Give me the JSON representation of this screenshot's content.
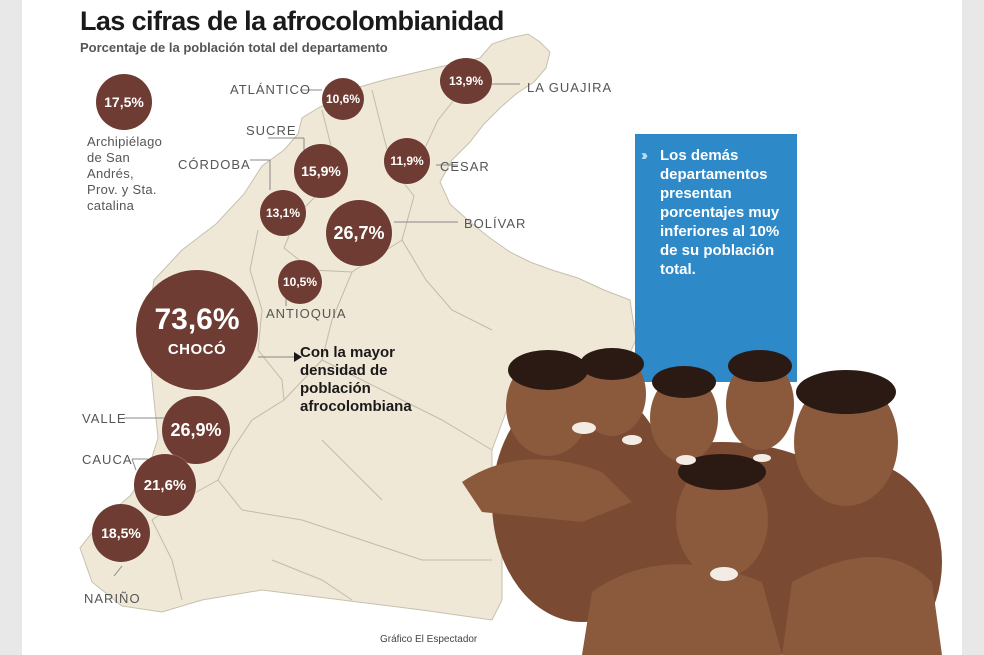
{
  "header": {
    "title": "Las cifras de la afrocolombianidad",
    "subtitle": "Porcentaje de la población total del departamento"
  },
  "chart_data": {
    "type": "bubble-map",
    "title": "Las cifras de la afrocolombianidad",
    "subtitle": "Porcentaje de la población total del departamento",
    "unit": "%",
    "points": [
      {
        "department": "Archipiélago de San Andrés, Prov. y Sta. catalina",
        "label": "17,5%",
        "value": 17.5
      },
      {
        "department": "ATLÁNTICO",
        "label": "10,6%",
        "value": 10.6
      },
      {
        "department": "LA GUAJIRA",
        "label": "13,9%",
        "value": 13.9
      },
      {
        "department": "SUCRE",
        "label": "15,9%",
        "value": 15.9
      },
      {
        "department": "CÓRDOBA",
        "label": "13,1%",
        "value": 13.1
      },
      {
        "department": "CESAR",
        "label": "11,9%",
        "value": 11.9
      },
      {
        "department": "BOLÍVAR",
        "label": "26,7%",
        "value": 26.7
      },
      {
        "department": "ANTIOQUIA",
        "label": "10,5%",
        "value": 10.5
      },
      {
        "department": "CHOCÓ",
        "label": "73,6%",
        "value": 73.6
      },
      {
        "department": "VALLE",
        "label": "26,9%",
        "value": 26.9
      },
      {
        "department": "CAUCA",
        "label": "21,6%",
        "value": 21.6
      },
      {
        "department": "NARIÑO",
        "label": "18,5%",
        "value": 18.5
      }
    ]
  },
  "labels": {
    "san_andres": "Archipiélago de San Andrés, Prov. y Sta. catalina",
    "atlantico": "ATLÁNTICO",
    "la_guajira": "LA GUAJIRA",
    "sucre": "SUCRE",
    "cordoba": "CÓRDOBA",
    "cesar": "CESAR",
    "bolivar": "BOLÍVAR",
    "antioquia": "ANTIOQUIA",
    "choco": "CHOCÓ",
    "valle": "VALLE",
    "cauca": "CAUCA",
    "narino": "NARIÑO"
  },
  "values": {
    "san_andres": "17,5%",
    "atlantico": "10,6%",
    "la_guajira": "13,9%",
    "sucre": "15,9%",
    "cordoba": "13,1%",
    "cesar": "11,9%",
    "bolivar": "26,7%",
    "antioquia": "10,5%",
    "choco": "73,6%",
    "valle": "26,9%",
    "cauca": "21,6%",
    "narino": "18,5%"
  },
  "annotations": {
    "choco_note": "Con la mayor densidad de población afrocolombiana",
    "blue_box": "Los demás departamentos presentan porcentajes muy inferiores al 10% de su población total."
  },
  "credit": "Gráfico El Espectador",
  "colors": {
    "bubble": "#6e3c32",
    "map_fill": "#efe8d6",
    "map_border": "#b9b2a2",
    "info_box": "#2e89c9",
    "background": "#e8e8e8"
  },
  "photo": {
    "icon": "children-photo"
  }
}
